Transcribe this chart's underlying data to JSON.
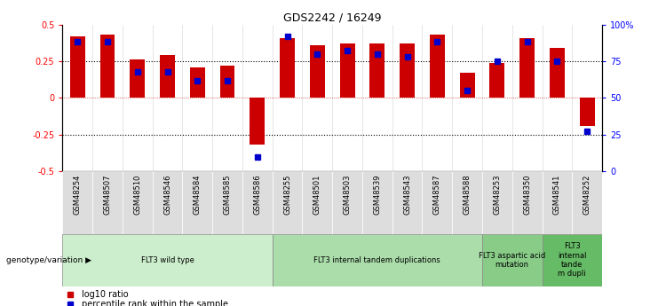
{
  "title": "GDS2242 / 16249",
  "samples": [
    "GSM48254",
    "GSM48507",
    "GSM48510",
    "GSM48546",
    "GSM48584",
    "GSM48585",
    "GSM48586",
    "GSM48255",
    "GSM48501",
    "GSM48503",
    "GSM48539",
    "GSM48543",
    "GSM48587",
    "GSM48588",
    "GSM48253",
    "GSM48350",
    "GSM48541",
    "GSM48252"
  ],
  "log10_ratio": [
    0.42,
    0.43,
    0.26,
    0.29,
    0.21,
    0.22,
    -0.32,
    0.41,
    0.36,
    0.37,
    0.37,
    0.37,
    0.43,
    0.17,
    0.24,
    0.41,
    0.34,
    -0.19
  ],
  "percentile_rank": [
    88,
    88,
    68,
    68,
    62,
    62,
    10,
    92,
    80,
    82,
    80,
    78,
    88,
    55,
    75,
    88,
    75,
    27
  ],
  "groups": [
    {
      "label": "FLT3 wild type",
      "start": 0,
      "end": 7,
      "color": "#cceecc"
    },
    {
      "label": "FLT3 internal tandem duplications",
      "start": 7,
      "end": 14,
      "color": "#aaddaa"
    },
    {
      "label": "FLT3 aspartic acid\nmutation",
      "start": 14,
      "end": 16,
      "color": "#88cc88"
    },
    {
      "label": "FLT3\ninternal\ntande\nm dupli",
      "start": 16,
      "end": 18,
      "color": "#66bb66"
    }
  ],
  "bar_color": "#cc0000",
  "dot_color": "#0000cc",
  "ylim_left": [
    -0.5,
    0.5
  ],
  "ylim_right": [
    0,
    100
  ],
  "yticks_left": [
    -0.5,
    -0.25,
    0.0,
    0.25,
    0.5
  ],
  "ytick_labels_left": [
    "-0.5",
    "-0.25",
    "0",
    "0.25",
    "0.5"
  ],
  "yticks_right": [
    0,
    25,
    50,
    75,
    100
  ],
  "ytick_labels_right": [
    "0",
    "25",
    "50",
    "75",
    "100%"
  ],
  "hlines_dotted": [
    0.25,
    -0.25
  ],
  "background_color": "#ffffff",
  "group_label": "genotype/variation"
}
